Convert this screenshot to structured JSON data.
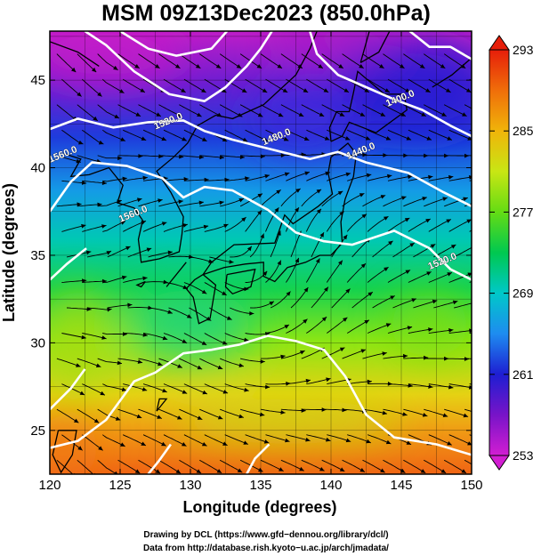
{
  "chart_data": {
    "type": "heatmap",
    "title": "MSM 09Z13Dec2023 (850.0hPa)",
    "xlabel": "Longitude (degrees)",
    "ylabel": "Latitude  (degrees)",
    "xlim": [
      120,
      150
    ],
    "ylim": [
      22.5,
      47.8
    ],
    "x_ticks": [
      "120",
      "125",
      "130",
      "135",
      "140",
      "145",
      "150"
    ],
    "y_ticks": [
      "25",
      "30",
      "35",
      "40",
      "45"
    ],
    "grid": true,
    "colorbar": {
      "min": 253,
      "max": 293,
      "tick_labels": [
        "293",
        "285",
        "277",
        "269",
        "261",
        "253"
      ],
      "colors": [
        "#d21ed2",
        "#7814c8",
        "#1e1ed2",
        "#1e8cf0",
        "#00c8c8",
        "#00c850",
        "#64dc14",
        "#c8e614",
        "#f0b40a",
        "#f06e0a",
        "#e61e0a"
      ]
    },
    "contour_labels": [
      {
        "text": "1520.0",
        "lon": 128.5,
        "lat": 42.5
      },
      {
        "text": "1480.0",
        "lon": 136.2,
        "lat": 41.6
      },
      {
        "text": "1440.0",
        "lon": 142.2,
        "lat": 40.8
      },
      {
        "text": "1400.0",
        "lon": 145.0,
        "lat": 43.8
      },
      {
        "text": "1520.0",
        "lon": 148.0,
        "lat": 34.5
      },
      {
        "text": "1560.0",
        "lon": 126.0,
        "lat": 37.2
      },
      {
        "text": "1560.0",
        "lon": 121.0,
        "lat": 40.6
      }
    ],
    "contours": [
      [
        [
          122.5,
          47.8
        ],
        [
          124,
          47
        ],
        [
          126,
          45.5
        ],
        [
          128.5,
          44.2
        ],
        [
          131,
          43.8
        ],
        [
          132.5,
          44.6
        ],
        [
          134,
          45.8
        ],
        [
          135,
          46.8
        ],
        [
          135.8,
          47.8
        ]
      ],
      [
        [
          125,
          47.8
        ],
        [
          127,
          46.8
        ],
        [
          129,
          46.4
        ],
        [
          131.5,
          46.8
        ],
        [
          132.6,
          47.8
        ]
      ],
      [
        [
          120,
          42.2
        ],
        [
          122,
          42.8
        ],
        [
          124.5,
          42.3
        ],
        [
          127,
          42.6
        ],
        [
          129.5,
          42.7
        ],
        [
          131,
          42.1
        ],
        [
          133,
          41.6
        ],
        [
          135.5,
          41.1
        ],
        [
          138.5,
          40.5
        ],
        [
          140.5,
          40.9
        ],
        [
          142.5,
          40.3
        ],
        [
          145.5,
          39.7
        ],
        [
          148,
          38.6
        ],
        [
          150,
          37.8
        ]
      ],
      [
        [
          138.5,
          47.8
        ],
        [
          139,
          46.5
        ],
        [
          140.5,
          45.3
        ],
        [
          142.5,
          44.6
        ],
        [
          144.5,
          43.9
        ],
        [
          146.5,
          43.3
        ],
        [
          148.5,
          42.4
        ],
        [
          150,
          41.8
        ]
      ],
      [
        [
          145.6,
          47.8
        ],
        [
          147,
          46.9
        ],
        [
          148.5,
          46.9
        ],
        [
          150,
          46.2
        ]
      ],
      [
        [
          120,
          37.5
        ],
        [
          121.5,
          39.2
        ],
        [
          123,
          40.3
        ],
        [
          125.5,
          40.1
        ],
        [
          128,
          39.4
        ],
        [
          129.5,
          38.3
        ],
        [
          131,
          38.9
        ],
        [
          133,
          38.7
        ],
        [
          135.5,
          37.6
        ],
        [
          137.5,
          36.3
        ],
        [
          139.5,
          35.8
        ],
        [
          141.5,
          35.6
        ],
        [
          144.5,
          36.4
        ],
        [
          147,
          35.4
        ],
        [
          148.5,
          34.2
        ],
        [
          150,
          33.6
        ]
      ],
      [
        [
          120,
          24
        ],
        [
          122,
          24.4
        ],
        [
          124,
          25.6
        ],
        [
          126,
          27.8
        ],
        [
          127.5,
          28.3
        ],
        [
          129.5,
          29.4
        ],
        [
          131.5,
          29.6
        ],
        [
          133.5,
          29.9
        ],
        [
          135.5,
          30.4
        ],
        [
          137.5,
          30.1
        ],
        [
          139.5,
          29.6
        ],
        [
          141,
          28.1
        ],
        [
          142.5,
          25.9
        ],
        [
          144.5,
          24.6
        ],
        [
          147.5,
          24.2
        ],
        [
          150,
          23.6
        ]
      ],
      [
        [
          120,
          26.2
        ],
        [
          121.5,
          27.4
        ],
        [
          122.5,
          28.5
        ]
      ],
      [
        [
          127,
          22.5
        ],
        [
          127.8,
          23.3
        ],
        [
          128.6,
          24.2
        ]
      ],
      [
        [
          134,
          22.5
        ],
        [
          134.6,
          23.4
        ],
        [
          135.6,
          24.2
        ]
      ],
      [
        [
          120,
          33.6
        ],
        [
          121.2,
          34.5
        ],
        [
          122.6,
          35.4
        ]
      ]
    ]
  }
}
